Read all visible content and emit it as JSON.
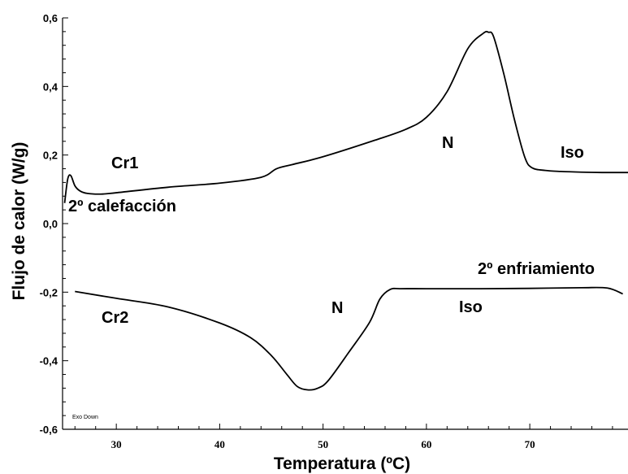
{
  "chart_data": {
    "type": "line",
    "title": "",
    "xlabel": "Temperatura (ºC)",
    "ylabel": "Flujo de calor (W/g)",
    "xlim": [
      24.8,
      79.5
    ],
    "ylim": [
      -0.6,
      0.6
    ],
    "x_ticks": [
      30,
      40,
      50,
      60,
      70
    ],
    "x_tick_labels": [
      "30",
      "40",
      "50",
      "60",
      "70"
    ],
    "y_ticks": [
      0.6,
      0.4,
      0.2,
      0.0,
      -0.2,
      -0.4,
      -0.6
    ],
    "y_tick_labels": [
      "0,6",
      "0,4",
      "0,2",
      "0,0",
      "-0,2",
      "-0,4",
      "-0,6"
    ],
    "grid": false,
    "series": [
      {
        "name": "2º calefacción",
        "color": "#000000",
        "x": [
          25.0,
          25.3,
          25.6,
          26.0,
          26.5,
          27.2,
          28.5,
          30.0,
          35.0,
          40.0,
          44.0,
          45.5,
          47.0,
          50.0,
          55.0,
          58.0,
          60.0,
          62.0,
          64.0,
          65.5,
          66.0,
          66.5,
          67.5,
          68.5,
          69.5,
          70.2,
          71.5,
          73.0,
          75.0,
          77.0,
          79.5
        ],
        "y": [
          0.06,
          0.13,
          0.14,
          0.11,
          0.095,
          0.088,
          0.086,
          0.09,
          0.106,
          0.118,
          0.135,
          0.16,
          0.172,
          0.195,
          0.243,
          0.275,
          0.31,
          0.385,
          0.51,
          0.555,
          0.558,
          0.545,
          0.435,
          0.305,
          0.195,
          0.163,
          0.155,
          0.152,
          0.15,
          0.149,
          0.149
        ]
      },
      {
        "name": "2º enfriamiento",
        "color": "#000000",
        "x": [
          26.0,
          30.0,
          35.0,
          40.0,
          43.0,
          45.0,
          46.5,
          47.5,
          48.5,
          49.5,
          50.5,
          52.5,
          54.5,
          55.5,
          56.5,
          57.5,
          60.0,
          65.0,
          70.0,
          75.0,
          77.5,
          79.0
        ],
        "y": [
          -0.198,
          -0.218,
          -0.243,
          -0.29,
          -0.333,
          -0.385,
          -0.44,
          -0.475,
          -0.485,
          -0.48,
          -0.458,
          -0.375,
          -0.288,
          -0.22,
          -0.192,
          -0.19,
          -0.19,
          -0.19,
          -0.189,
          -0.187,
          -0.188,
          -0.205
        ]
      }
    ],
    "annotations": [
      "Cr1",
      "N",
      "Iso",
      "Cr2",
      "N",
      "Iso",
      "Exo Down"
    ]
  },
  "annotations": {
    "heating_label": "2º calefacción",
    "cooling_label": "2º enfriamiento",
    "cr1": "Cr1",
    "n_heat": "N",
    "iso_heat": "Iso",
    "cr2": "Cr2",
    "n_cool": "N",
    "iso_cool": "Iso",
    "exo": "Exo Down"
  }
}
